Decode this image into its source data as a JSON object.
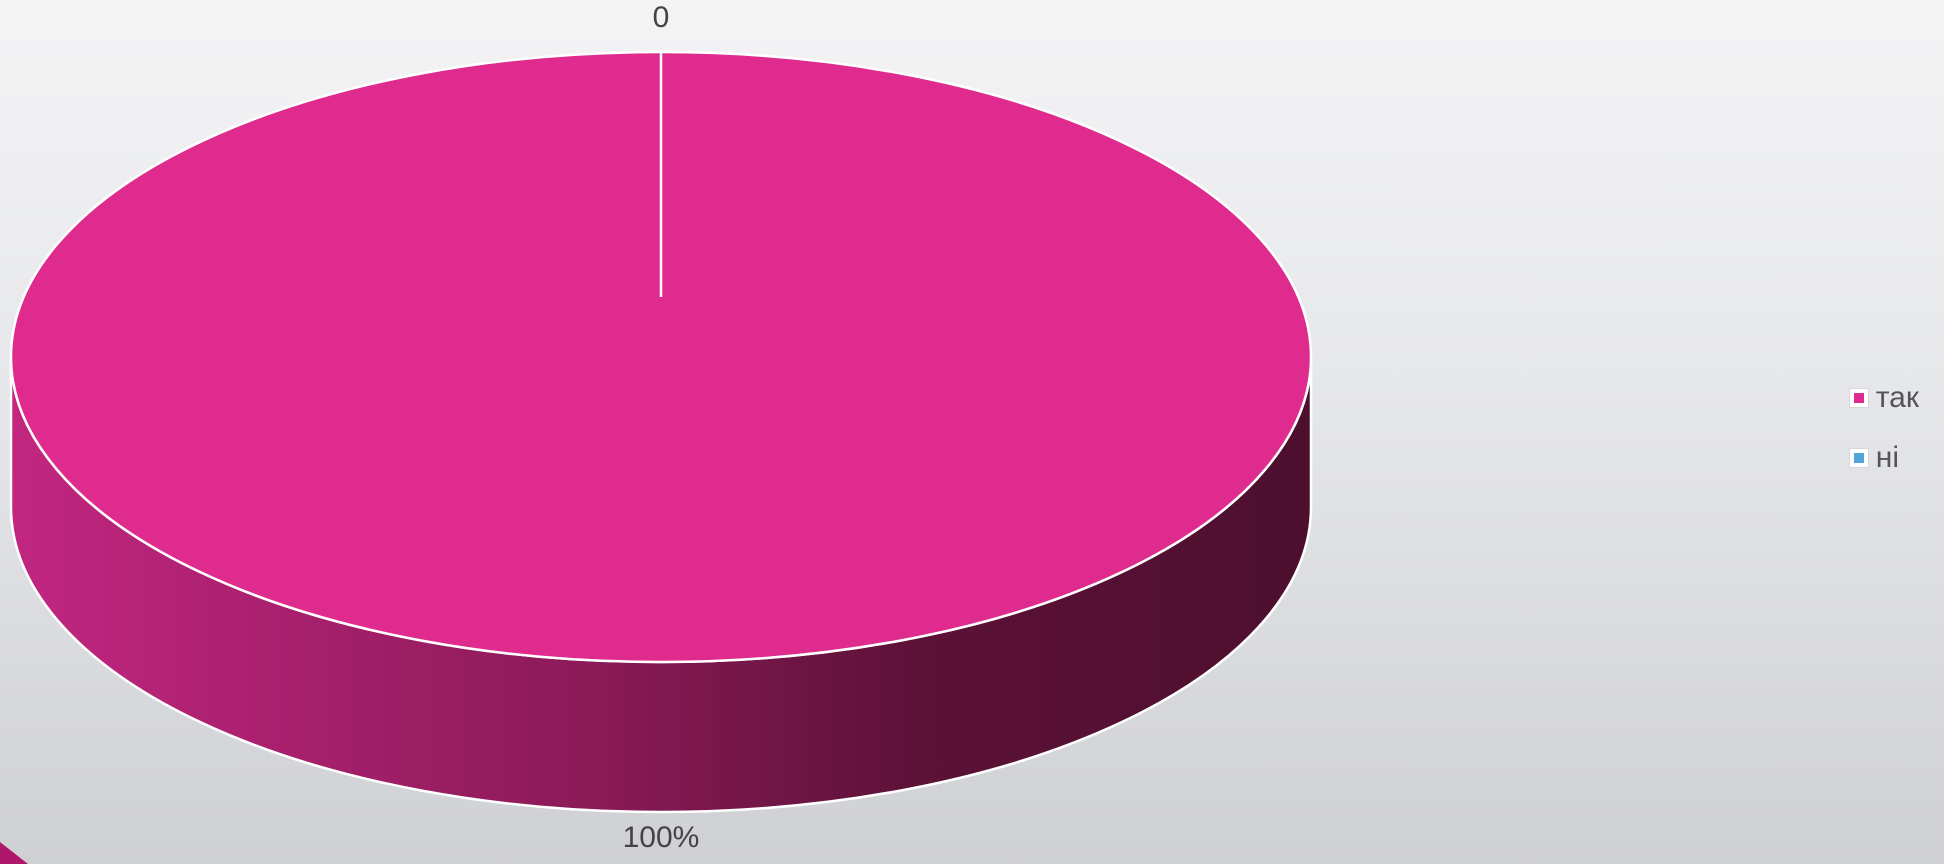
{
  "chart_data": {
    "type": "pie",
    "title": "",
    "three_d": true,
    "categories": [
      "так",
      "ні"
    ],
    "values": [
      100,
      0
    ],
    "data_labels": [
      "100%",
      "0"
    ],
    "colors": [
      "#e02b8e",
      "#4ea6dc"
    ],
    "legend_position": "right"
  }
}
